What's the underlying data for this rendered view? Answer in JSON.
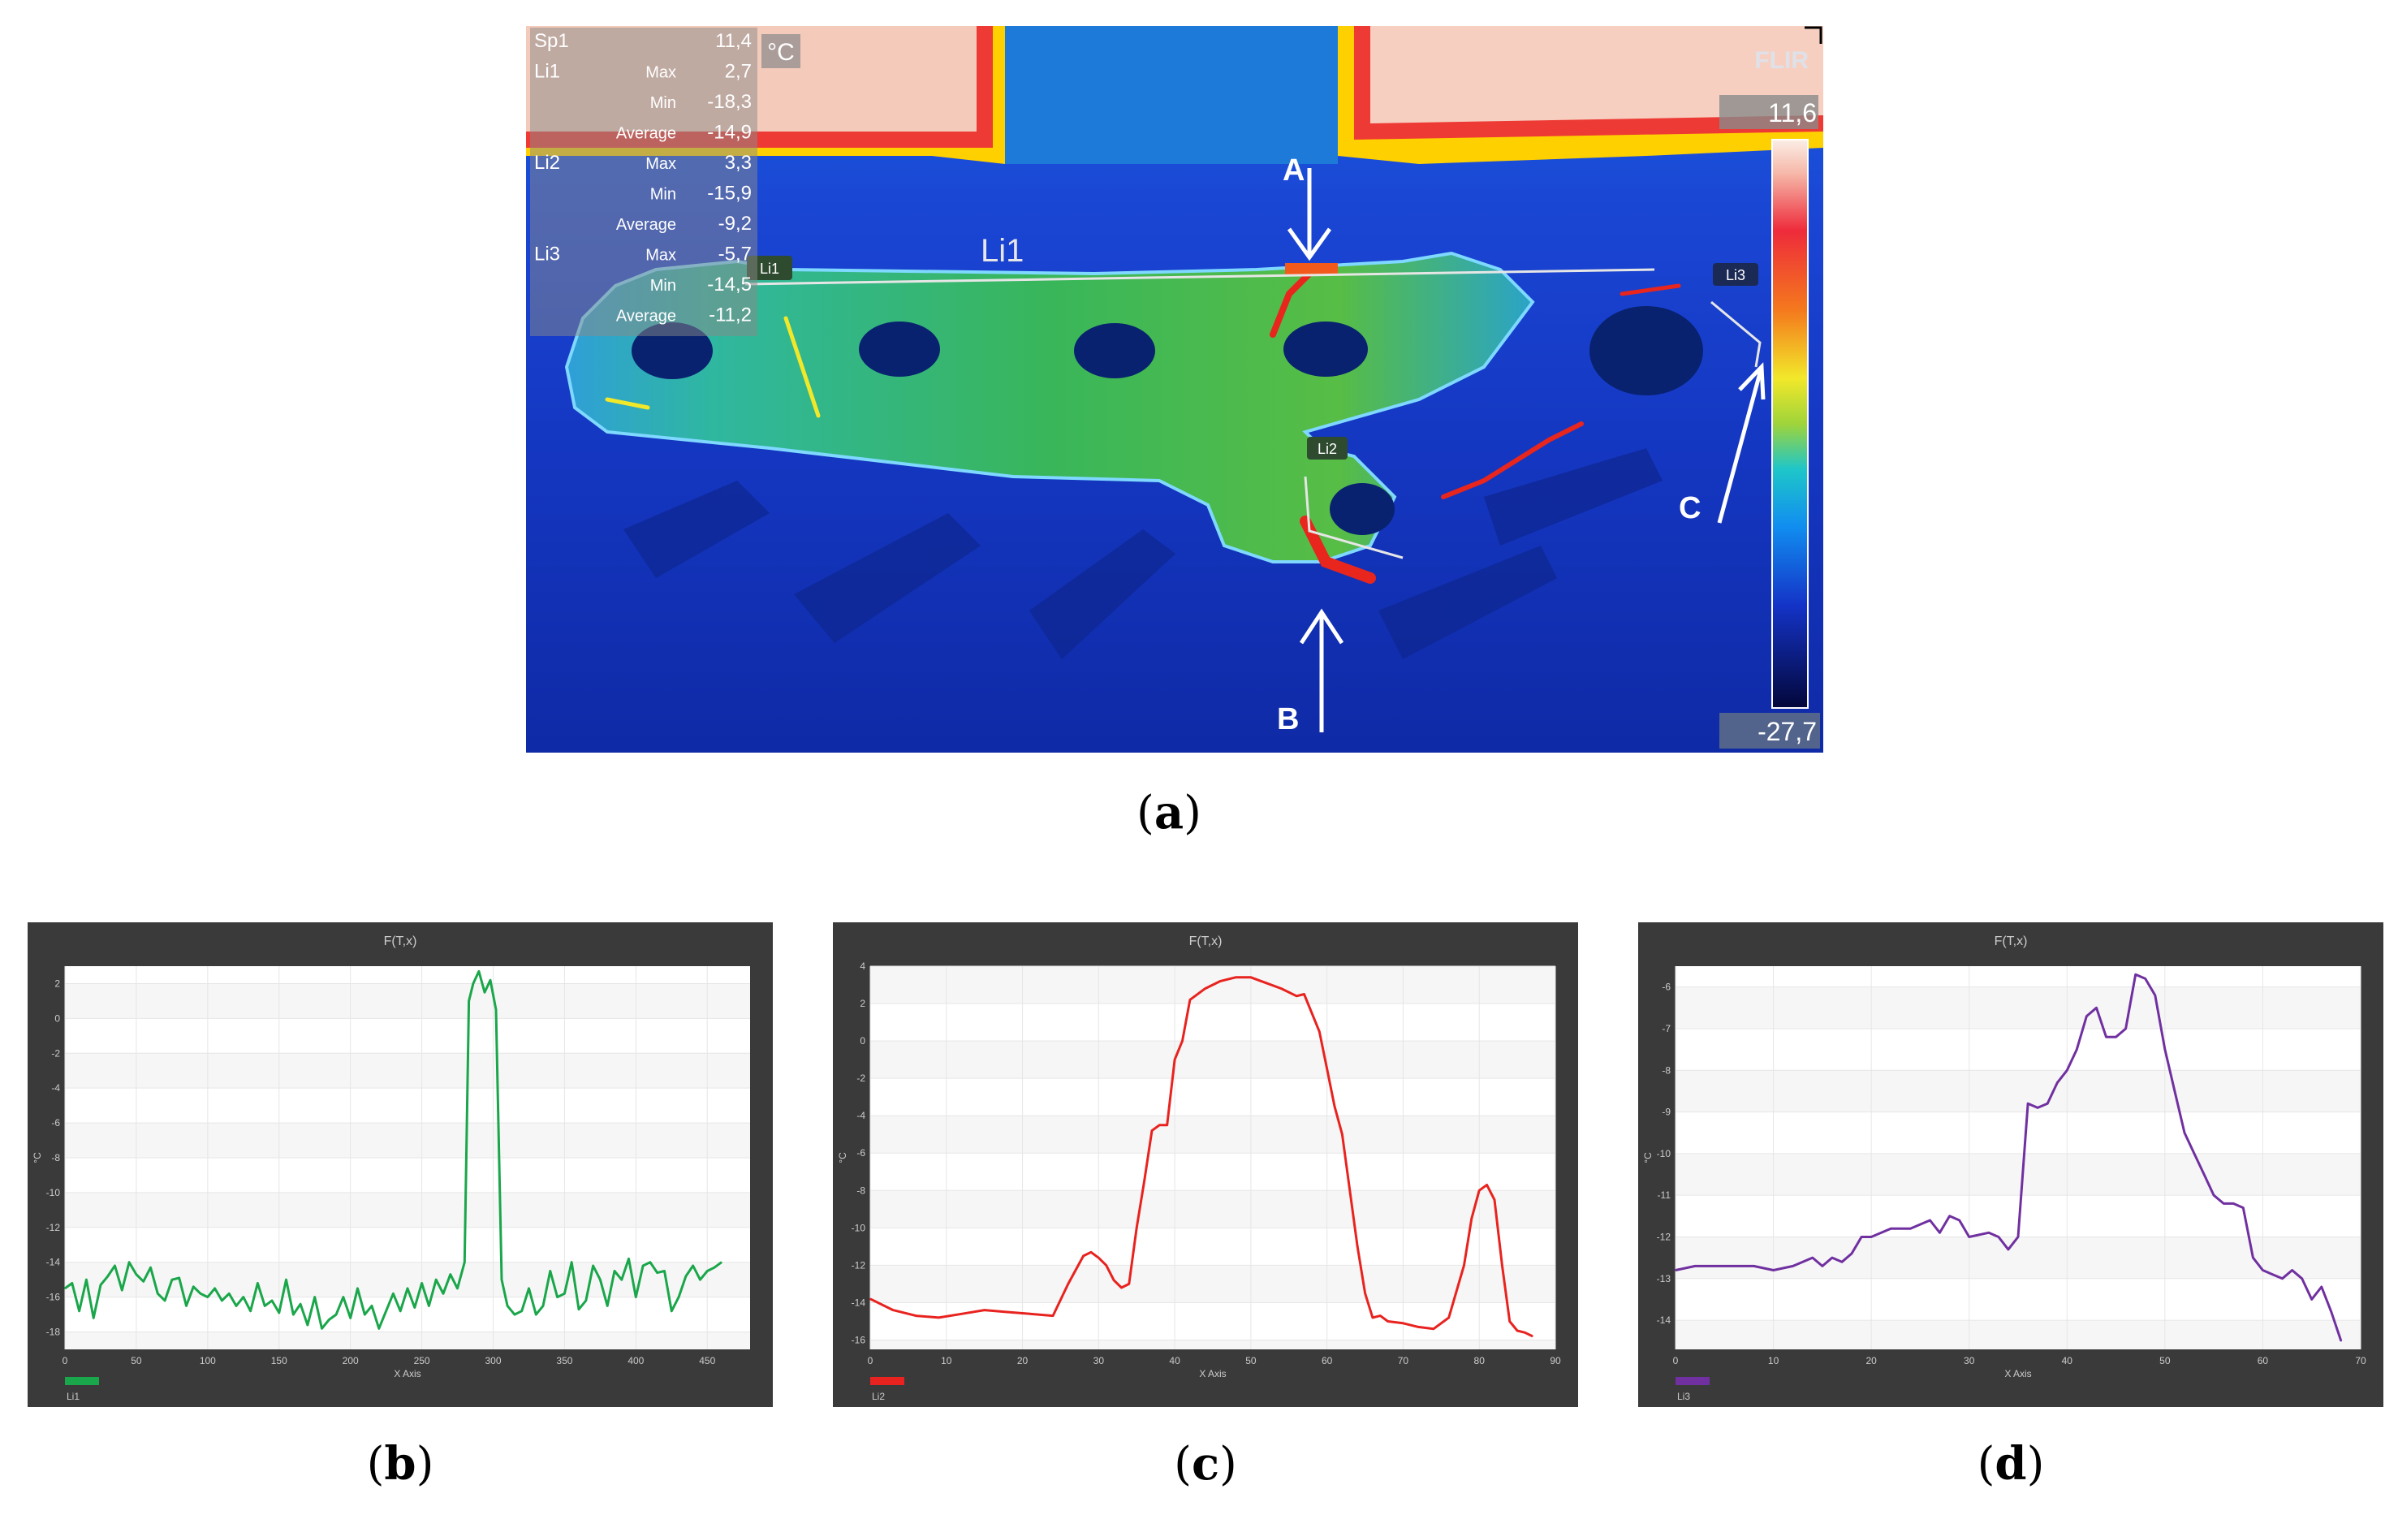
{
  "panel_labels": {
    "a": "(a)",
    "b": "(b)",
    "c": "(c)",
    "d": "(d)",
    "a_letter": "a",
    "b_letter": "b",
    "c_letter": "c",
    "d_letter": "d"
  },
  "thermal": {
    "unit": "°C",
    "logo": "FLIR",
    "scale_max": "11,6",
    "scale_min": "-27,7",
    "arrow_labels": [
      "A",
      "B",
      "C"
    ],
    "line_labels": {
      "li1_big": "Li1",
      "li1_small": "Li1",
      "li2": "Li2",
      "li3": "Li3"
    },
    "measurements": [
      {
        "name": "Sp1",
        "stat": "",
        "value": "11,4"
      },
      {
        "name": "Li1",
        "stat": "Max",
        "value": "2,7"
      },
      {
        "name": "",
        "stat": "Min",
        "value": "-18,3"
      },
      {
        "name": "",
        "stat": "Average",
        "value": "-14,9"
      },
      {
        "name": "Li2",
        "stat": "Max",
        "value": "3,3"
      },
      {
        "name": "",
        "stat": "Min",
        "value": "-15,9"
      },
      {
        "name": "",
        "stat": "Average",
        "value": "-9,2"
      },
      {
        "name": "Li3",
        "stat": "Max",
        "value": "-5,7"
      },
      {
        "name": "",
        "stat": "Min",
        "value": "-14,5"
      },
      {
        "name": "",
        "stat": "Average",
        "value": "-11,2"
      }
    ]
  },
  "chart_data": [
    {
      "type": "line",
      "title": "F(T,x)",
      "xlabel": "X Axis",
      "ylabel": "°C",
      "xlim": [
        0,
        480
      ],
      "ylim": [
        -19,
        3
      ],
      "xticks": [
        0,
        50,
        100,
        150,
        200,
        250,
        300,
        350,
        400,
        450
      ],
      "yticks": [
        2,
        0,
        -2,
        -4,
        -6,
        -8,
        -10,
        -12,
        -14,
        -16,
        -18
      ],
      "legend": "Li1",
      "color": "#1aa64a",
      "x": [
        0,
        5,
        10,
        15,
        20,
        25,
        30,
        35,
        40,
        45,
        50,
        55,
        60,
        65,
        70,
        75,
        80,
        85,
        90,
        95,
        100,
        105,
        110,
        115,
        120,
        125,
        130,
        135,
        140,
        145,
        150,
        155,
        160,
        165,
        170,
        175,
        180,
        185,
        190,
        195,
        200,
        205,
        210,
        215,
        220,
        225,
        230,
        235,
        240,
        245,
        250,
        255,
        260,
        265,
        270,
        275,
        280,
        283,
        286,
        290,
        294,
        298,
        302,
        306,
        310,
        315,
        320,
        325,
        330,
        335,
        340,
        345,
        350,
        355,
        360,
        365,
        370,
        375,
        380,
        385,
        390,
        395,
        400,
        405,
        410,
        415,
        420,
        425,
        430,
        435,
        440,
        445,
        450,
        455,
        460
      ],
      "y": [
        -15.5,
        -15.2,
        -16.8,
        -15.0,
        -17.2,
        -15.3,
        -14.8,
        -14.2,
        -15.6,
        -14.0,
        -14.7,
        -15.1,
        -14.3,
        -15.8,
        -16.2,
        -15.0,
        -14.9,
        -16.5,
        -15.4,
        -15.8,
        -16.0,
        -15.5,
        -16.2,
        -15.8,
        -16.5,
        -16.0,
        -16.8,
        -15.2,
        -16.5,
        -16.2,
        -16.9,
        -15.0,
        -17.0,
        -16.4,
        -17.6,
        -16.0,
        -17.8,
        -17.3,
        -17.0,
        -16.0,
        -17.2,
        -15.5,
        -17.0,
        -16.5,
        -17.8,
        -16.8,
        -15.8,
        -16.8,
        -15.5,
        -16.6,
        -15.2,
        -16.5,
        -15.0,
        -15.8,
        -14.7,
        -15.5,
        -14.0,
        1.0,
        2.0,
        2.7,
        1.5,
        2.2,
        0.5,
        -15.0,
        -16.5,
        -17.0,
        -16.8,
        -15.5,
        -17.0,
        -16.5,
        -14.5,
        -16.0,
        -15.8,
        -14.0,
        -16.7,
        -16.2,
        -14.2,
        -15.0,
        -16.5,
        -14.5,
        -15.0,
        -13.8,
        -16.0,
        -14.2,
        -14.0,
        -14.6,
        -14.5,
        -16.8,
        -16.0,
        -14.8,
        -14.2,
        -15.0,
        -14.5,
        -14.3,
        -14.0
      ]
    },
    {
      "type": "line",
      "title": "F(T,x)",
      "xlabel": "X Axis",
      "ylabel": "°C",
      "xlim": [
        0,
        90
      ],
      "ylim": [
        -16.5,
        4
      ],
      "xticks": [
        0,
        10,
        20,
        30,
        40,
        50,
        60,
        70,
        80,
        90
      ],
      "yticks": [
        4,
        2,
        0,
        -2,
        -4,
        -6,
        -8,
        -10,
        -12,
        -14,
        -16
      ],
      "legend": "Li2",
      "color": "#e8231f",
      "x": [
        0,
        3,
        6,
        9,
        12,
        15,
        18,
        21,
        24,
        26,
        28,
        29,
        30,
        31,
        32,
        33,
        34,
        35,
        36,
        37,
        38,
        39,
        40,
        41,
        42,
        44,
        46,
        48,
        50,
        52,
        54,
        56,
        57,
        58,
        59,
        60,
        61,
        62,
        63,
        64,
        65,
        66,
        67,
        68,
        70,
        72,
        74,
        76,
        78,
        79,
        80,
        81,
        82,
        83,
        84,
        85,
        86,
        87
      ],
      "y": [
        -13.8,
        -14.4,
        -14.7,
        -14.8,
        -14.6,
        -14.4,
        -14.5,
        -14.6,
        -14.7,
        -13.0,
        -11.5,
        -11.3,
        -11.6,
        -12.0,
        -12.8,
        -13.2,
        -13.0,
        -10.0,
        -7.5,
        -4.8,
        -4.5,
        -4.5,
        -1.0,
        0.0,
        2.2,
        2.8,
        3.2,
        3.4,
        3.4,
        3.1,
        2.8,
        2.4,
        2.5,
        1.5,
        0.5,
        -1.5,
        -3.5,
        -5.0,
        -8.0,
        -11.0,
        -13.5,
        -14.8,
        -14.7,
        -15.0,
        -15.1,
        -15.3,
        -15.4,
        -14.8,
        -12.0,
        -9.5,
        -8.0,
        -7.7,
        -8.5,
        -12.0,
        -15.0,
        -15.5,
        -15.6,
        -15.8
      ]
    },
    {
      "type": "line",
      "title": "F(T,x)",
      "xlabel": "X Axis",
      "ylabel": "°C",
      "xlim": [
        0,
        70
      ],
      "ylim": [
        -14.7,
        -5.5
      ],
      "xticks": [
        0,
        10,
        20,
        30,
        40,
        50,
        60,
        70
      ],
      "yticks": [
        -6,
        -7,
        -8,
        -9,
        -10,
        -11,
        -12,
        -13,
        -14
      ],
      "legend": "Li3",
      "color": "#7030a0",
      "x": [
        0,
        2,
        4,
        6,
        8,
        10,
        12,
        14,
        15,
        16,
        17,
        18,
        19,
        20,
        22,
        24,
        25,
        26,
        27,
        28,
        29,
        30,
        32,
        33,
        34,
        35,
        36,
        37,
        38,
        39,
        40,
        41,
        42,
        43,
        44,
        45,
        46,
        47,
        48,
        49,
        50,
        51,
        52,
        53,
        54,
        55,
        56,
        57,
        58,
        59,
        60,
        61,
        62,
        63,
        64,
        65,
        66,
        67,
        68
      ],
      "y": [
        -12.8,
        -12.7,
        -12.7,
        -12.7,
        -12.7,
        -12.8,
        -12.7,
        -12.5,
        -12.7,
        -12.5,
        -12.6,
        -12.4,
        -12.0,
        -12.0,
        -11.8,
        -11.8,
        -11.7,
        -11.6,
        -11.9,
        -11.5,
        -11.6,
        -12.0,
        -11.9,
        -12.0,
        -12.3,
        -12.0,
        -8.8,
        -8.9,
        -8.8,
        -8.3,
        -8.0,
        -7.5,
        -6.7,
        -6.5,
        -7.2,
        -7.2,
        -7.0,
        -5.7,
        -5.8,
        -6.2,
        -7.5,
        -8.5,
        -9.5,
        -10.0,
        -10.5,
        -11.0,
        -11.2,
        -11.2,
        -11.3,
        -12.5,
        -12.8,
        -12.9,
        -13.0,
        -12.8,
        -13.0,
        -13.5,
        -13.2,
        -13.8,
        -14.5
      ]
    }
  ]
}
